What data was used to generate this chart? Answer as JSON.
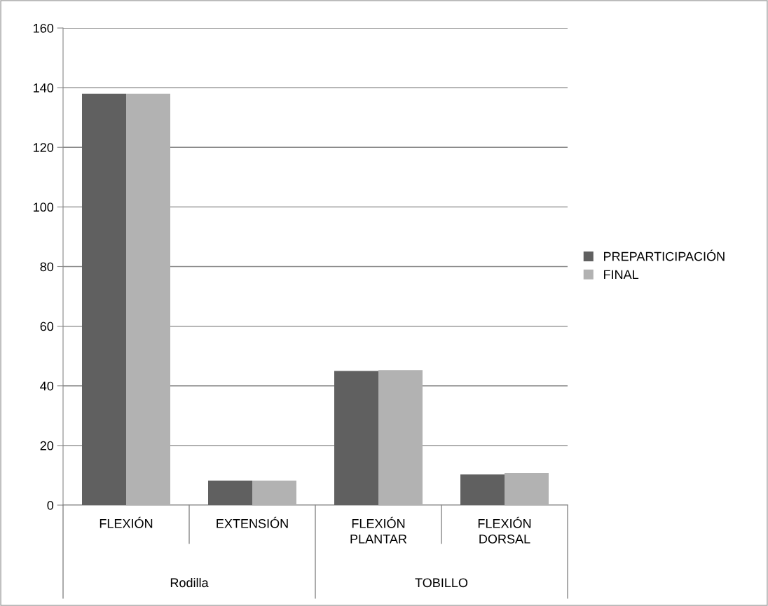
{
  "chart_data": {
    "type": "bar",
    "categories": [
      "FLEXIÓN",
      "EXTENSIÓN",
      "FLEXIÓN\nPLANTAR",
      "FLEXIÓN\nDORSAL"
    ],
    "series": [
      {
        "name": "PREPARTICIPACIÓN",
        "color": "#606060",
        "values": [
          138,
          8.2,
          45,
          10.3
        ]
      },
      {
        "name": "FINAL",
        "color": "#b2b2b2",
        "values": [
          138,
          8.2,
          45.3,
          10.8
        ]
      }
    ],
    "ylim": [
      0,
      160
    ],
    "yticks": [
      0,
      20,
      40,
      60,
      80,
      100,
      120,
      140,
      160
    ],
    "grid": "y",
    "legend": "right",
    "annotations": [
      "Rodilla",
      "TOBILLO"
    ]
  }
}
